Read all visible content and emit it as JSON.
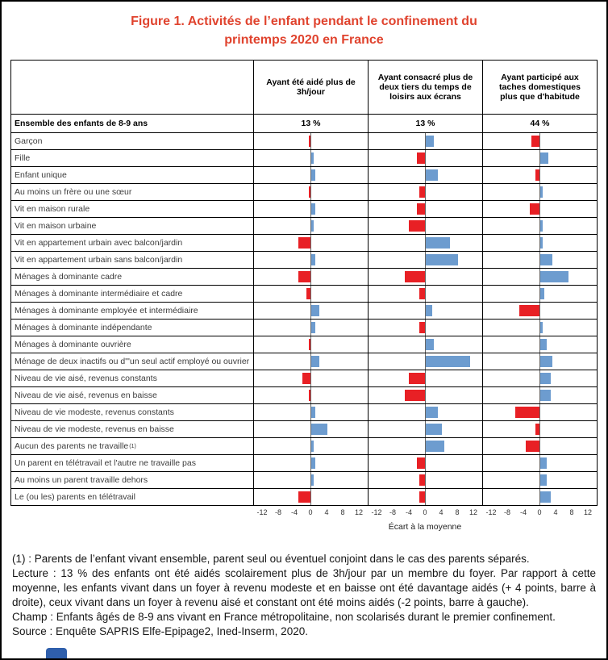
{
  "title": "Figure 1. Activités de l’enfant pendant le confinement du printemps 2020 en France",
  "chart_data": {
    "type": "bar",
    "variant": "horizontal-diverging-small-multiples",
    "panels": [
      "Ayant été aidé plus de 3h/jour",
      "Ayant consacré plus de deux tiers du temps de loisirs aux écrans",
      "Ayant participé aux taches domestiques plus que d'habitude"
    ],
    "ensemble_row": {
      "label": "Ensemble des enfants de 8-9 ans",
      "values": [
        "13 %",
        "13 %",
        "44 %"
      ]
    },
    "x_ticks": [
      -12,
      -8,
      -4,
      0,
      4,
      8,
      12
    ],
    "xlim": [
      -14,
      14
    ],
    "xlabel": "Écart à la moyenne",
    "grid": "table-rows",
    "colors": {
      "positive_bar": "#6d9ccf",
      "negative_bar": "#e82025",
      "title_red": "#e0432e"
    },
    "rows": [
      {
        "label": "Garçon",
        "values": [
          -0.5,
          2,
          -2
        ]
      },
      {
        "label": "Fille",
        "values": [
          0.5,
          -2,
          2
        ]
      },
      {
        "label": "Enfant unique",
        "values": [
          1,
          3,
          -1
        ]
      },
      {
        "label": "Au moins un frère ou une sœur",
        "values": [
          -0.5,
          -1.5,
          0.5
        ]
      },
      {
        "label": "Vit en maison rurale",
        "values": [
          1,
          -2,
          -2.5
        ]
      },
      {
        "label": "Vit en maison urbaine",
        "values": [
          0.5,
          -4,
          0.5
        ]
      },
      {
        "label": "Vit en appartement urbain avec balcon/jardin",
        "values": [
          -3,
          6,
          0.5
        ]
      },
      {
        "label": "Vit en appartement urbain sans balcon/jardin",
        "values": [
          1,
          8,
          3
        ]
      },
      {
        "label": "Ménages à dominante cadre",
        "values": [
          -3,
          -5,
          7
        ]
      },
      {
        "label": "Ménages à dominante intermédiaire et cadre",
        "values": [
          -1,
          -1.5,
          1
        ]
      },
      {
        "label": "Ménages à dominante employée et intermédiaire",
        "values": [
          2,
          1.5,
          -5
        ]
      },
      {
        "label": "Ménages à dominante indépendante",
        "values": [
          1,
          -1.5,
          0.5
        ]
      },
      {
        "label": "Ménages à dominante ouvrière",
        "values": [
          -0.5,
          2,
          1.5
        ]
      },
      {
        "label": "Ménage de deux inactifs ou d'\"un seul actif employé ou ouvrier",
        "values": [
          2,
          11,
          3
        ]
      },
      {
        "label": "Niveau de vie aisé, revenus constants",
        "values": [
          -2,
          -4,
          2.5
        ]
      },
      {
        "label": "Niveau de vie aisé, revenus en baisse",
        "values": [
          -0.5,
          -5,
          2.5
        ]
      },
      {
        "label": "Niveau de vie modeste, revenus constants",
        "values": [
          1,
          3,
          -6
        ]
      },
      {
        "label": "Niveau de vie modeste, revenus en baisse",
        "values": [
          4,
          4,
          -1
        ]
      },
      {
        "label": "Aucun des parents ne travaille ",
        "sup": "(1)",
        "values": [
          0.5,
          4.5,
          -3.5
        ]
      },
      {
        "label": "Un parent en télétravail et l'autre ne travaille pas",
        "values": [
          1,
          -2,
          1.5
        ]
      },
      {
        "label": "Au moins un parent travaille dehors",
        "values": [
          0.5,
          -1.5,
          1.5
        ]
      },
      {
        "label": "Le (ou les) parents en télétravail",
        "values": [
          -3,
          -1.5,
          2.5
        ]
      }
    ]
  },
  "footnotes": [
    "(1) : Parents de l’enfant vivant ensemble, parent seul ou éventuel conjoint dans le cas des parents séparés.",
    "Lecture : 13 % des enfants ont été aidés scolairement plus de 3h/jour par un membre du foyer. Par rapport à cette moyenne, les enfants vivant dans un foyer à revenu modeste et en baisse ont été davantage aidés (+ 4 points, barre à droite), ceux vivant dans un foyer à revenu aisé et constant ont été moins aidés (-2 points, barre à gauche).",
    "Champ : Enfants âgés de 8-9 ans vivant en France métropolitaine, non scolarisés durant le premier confinement.",
    "Source : Enquête SAPRIS Elfe-Epipage2, Ined-Inserm, 2020."
  ]
}
